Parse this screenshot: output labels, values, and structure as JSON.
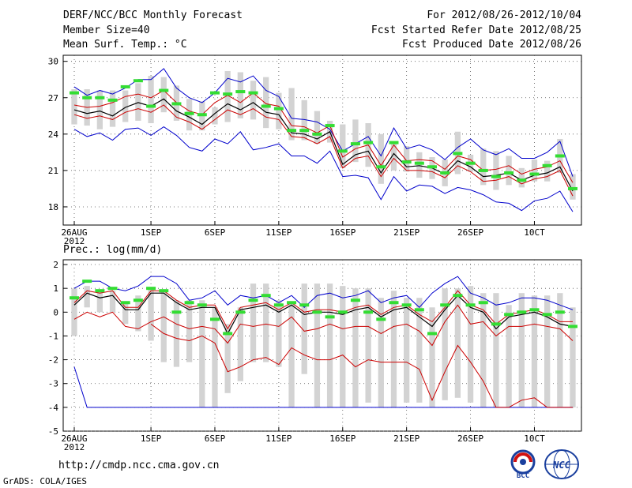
{
  "header": {
    "model": "DERF/NCC/BCC Monthly Forecast",
    "member_size": "Member Size=40",
    "variable": "Mean Surf. Temp.: °C",
    "period": "For 2012/08/26-2012/10/04",
    "started": "Fcst Started Refer Date 2012/08/25",
    "produced": "Fcst Produced Date 2012/08/26"
  },
  "precip_label": "Prec.: log(mm/d)",
  "footer": {
    "url": "http://cmdp.ncc.cma.gov.cn",
    "credit": "GrADS: COLA/IGES",
    "logo_left_text": "BCC",
    "logo_right_text": "NCC"
  },
  "colors": {
    "box": "#d3d3d3",
    "ensemble_mean": "#000000",
    "percentile": "#cc0000",
    "extreme": "#0000cc",
    "marker": "#33dd33",
    "grid": "#555555"
  },
  "chart_data": [
    {
      "type": "line",
      "title": "Mean Surf. Temp.: °C",
      "x_tick_labels": [
        "26AUG\n2012",
        "1SEP",
        "6SEP",
        "11SEP",
        "16SEP",
        "21SEP",
        "26SEP",
        "1OCT"
      ],
      "x_tick_days": [
        0,
        6,
        11,
        16,
        21,
        26,
        31,
        36
      ],
      "x_tick_display": [
        "26AUG",
        "1SEP",
        "6SEP",
        "11SEP",
        "16SEP",
        "21SEP",
        "26SEP",
        "10CT"
      ],
      "x_tick_year": "2012",
      "ylim": [
        16.5,
        30.5
      ],
      "yticks": [
        18,
        21,
        24,
        27,
        30
      ],
      "grid": true,
      "days": 40,
      "series": [
        {
          "name": "max",
          "values": [
            27.9,
            27.2,
            27.6,
            27.3,
            27.8,
            28.5,
            28.5,
            29.4,
            27.8,
            27.0,
            26.6,
            27.4,
            28.6,
            28.3,
            28.8,
            27.6,
            27.1,
            25.3,
            25.2,
            25.0,
            24.4,
            22.6,
            23.2,
            23.8,
            22.2,
            24.5,
            22.8,
            23.1,
            22.7,
            21.9,
            22.9,
            23.6,
            22.7,
            22.3,
            22.8,
            22.0,
            22.0,
            22.5,
            23.4,
            20.5
          ]
        },
        {
          "name": "upper",
          "values": [
            26.4,
            26.2,
            26.3,
            26.6,
            27.1,
            27.3,
            27.0,
            27.6,
            26.6,
            25.9,
            25.6,
            26.6,
            27.2,
            26.6,
            27.4,
            26.5,
            26.3,
            24.7,
            24.6,
            24.1,
            24.7,
            22.1,
            22.8,
            23.1,
            21.4,
            23.1,
            21.8,
            21.9,
            21.8,
            21.1,
            22.2,
            21.9,
            21.0,
            21.1,
            21.4,
            20.7,
            21.1,
            21.3,
            21.8,
            20.0
          ]
        },
        {
          "name": "mean",
          "values": [
            26.0,
            25.7,
            25.9,
            25.5,
            26.2,
            26.6,
            26.3,
            26.9,
            25.9,
            25.4,
            24.8,
            25.7,
            26.5,
            26.0,
            26.6,
            25.8,
            25.6,
            24.1,
            24.0,
            23.6,
            24.2,
            21.5,
            22.3,
            22.6,
            20.8,
            22.4,
            21.3,
            21.4,
            21.2,
            20.7,
            21.8,
            21.3,
            20.5,
            20.6,
            20.8,
            20.2,
            20.6,
            20.8,
            21.3,
            19.3
          ]
        },
        {
          "name": "lower",
          "values": [
            25.6,
            25.3,
            25.5,
            25.2,
            25.8,
            26.1,
            25.8,
            26.4,
            25.4,
            25.0,
            24.4,
            25.2,
            26.0,
            25.6,
            26.1,
            25.4,
            25.2,
            23.8,
            23.7,
            23.2,
            23.8,
            21.2,
            22.0,
            22.2,
            20.5,
            22.0,
            21.0,
            21.0,
            20.9,
            20.4,
            21.4,
            20.9,
            20.1,
            20.2,
            20.5,
            19.9,
            20.3,
            20.5,
            21.0,
            18.9
          ]
        },
        {
          "name": "min",
          "values": [
            24.4,
            23.8,
            24.1,
            23.5,
            24.4,
            24.5,
            23.9,
            24.6,
            23.9,
            22.9,
            22.6,
            23.6,
            23.2,
            24.2,
            22.7,
            22.9,
            23.2,
            22.2,
            22.2,
            21.6,
            22.6,
            20.5,
            20.6,
            20.4,
            18.6,
            20.5,
            19.3,
            19.8,
            19.7,
            19.1,
            19.6,
            19.4,
            19.0,
            18.4,
            18.3,
            17.7,
            18.5,
            18.7,
            19.3,
            17.6
          ]
        },
        {
          "name": "box_top",
          "values": [
            27.7,
            27.7,
            27.6,
            27.6,
            27.6,
            28.2,
            28.8,
            28.7,
            28.0,
            26.9,
            26.7,
            26.2,
            29.2,
            29.1,
            28.4,
            28.7,
            27.4,
            27.8,
            26.8,
            25.9,
            25.1,
            24.8,
            25.2,
            24.9,
            24.0,
            23.2,
            23.0,
            22.5,
            22.1,
            21.9,
            24.2,
            22.3,
            22.8,
            22.6,
            22.2,
            21.2,
            21.9,
            21.8,
            23.6,
            20.7
          ]
        },
        {
          "name": "box_bottom",
          "values": [
            24.8,
            24.7,
            24.4,
            24.6,
            25.0,
            25.1,
            24.9,
            25.8,
            25.1,
            24.3,
            24.3,
            24.8,
            25.0,
            25.3,
            25.2,
            24.5,
            24.4,
            23.5,
            23.5,
            23.2,
            23.3,
            21.2,
            21.7,
            21.3,
            19.9,
            21.0,
            20.9,
            20.4,
            20.3,
            19.7,
            20.7,
            20.9,
            19.8,
            19.4,
            19.8,
            19.6,
            20.1,
            20.1,
            20.8,
            18.6
          ]
        },
        {
          "name": "marker",
          "values": [
            27.4,
            27.0,
            27.0,
            26.8,
            27.9,
            28.4,
            26.3,
            27.6,
            26.5,
            25.7,
            25.6,
            27.4,
            27.3,
            27.5,
            27.4,
            26.3,
            26.1,
            24.3,
            24.3,
            24.0,
            24.7,
            22.6,
            23.2,
            23.3,
            21.3,
            23.3,
            21.7,
            21.6,
            21.3,
            20.8,
            22.4,
            21.6,
            21.0,
            20.5,
            20.8,
            20.2,
            20.7,
            21.4,
            22.2,
            19.5
          ]
        }
      ]
    },
    {
      "type": "line",
      "title": "Prec.: log(mm/d)",
      "x_tick_labels": [
        "26AUG\n2012",
        "1SEP",
        "6SEP",
        "11SEP",
        "16SEP",
        "21SEP",
        "26SEP",
        "1OCT"
      ],
      "x_tick_days": [
        0,
        6,
        11,
        16,
        21,
        26,
        31,
        36
      ],
      "x_tick_display": [
        "26AUG",
        "1SEP",
        "6SEP",
        "11SEP",
        "16SEP",
        "21SEP",
        "26SEP",
        "10CT"
      ],
      "x_tick_year": "2012",
      "ylim": [
        -5,
        2.2
      ],
      "yticks": [
        -5,
        -4,
        -3,
        -2,
        -1,
        0,
        1,
        2
      ],
      "grid": true,
      "days": 40,
      "series": [
        {
          "name": "max",
          "values": [
            1.0,
            1.3,
            1.3,
            1.0,
            0.9,
            1.1,
            1.5,
            1.5,
            1.2,
            0.5,
            0.6,
            0.9,
            0.3,
            0.7,
            0.6,
            0.7,
            0.4,
            0.7,
            0.2,
            0.7,
            0.8,
            0.6,
            0.7,
            0.9,
            0.4,
            0.6,
            0.7,
            0.2,
            0.8,
            1.2,
            1.5,
            0.8,
            0.6,
            0.3,
            0.4,
            0.6,
            0.6,
            0.5,
            0.3,
            0.1
          ]
        },
        {
          "name": "upper",
          "values": [
            0.4,
            0.9,
            0.8,
            0.9,
            0.2,
            0.2,
            0.9,
            0.9,
            0.5,
            0.2,
            0.3,
            0.3,
            -0.7,
            0.2,
            0.3,
            0.4,
            0.1,
            0.4,
            0.0,
            0.1,
            0.1,
            0.0,
            0.2,
            0.3,
            -0.1,
            0.2,
            0.3,
            -0.1,
            -0.4,
            0.2,
            0.9,
            0.3,
            0.1,
            -0.5,
            -0.1,
            0.0,
            0.1,
            -0.1,
            -0.4,
            -0.4
          ]
        },
        {
          "name": "mean",
          "values": [
            0.3,
            0.8,
            0.6,
            0.7,
            0.1,
            0.1,
            0.8,
            0.8,
            0.4,
            0.1,
            0.2,
            0.2,
            -0.9,
            0.1,
            0.2,
            0.3,
            0.0,
            0.3,
            -0.1,
            0.0,
            0.0,
            -0.1,
            0.1,
            0.2,
            -0.2,
            0.1,
            0.2,
            -0.2,
            -0.6,
            0.1,
            0.7,
            0.2,
            0.0,
            -0.7,
            -0.2,
            -0.1,
            0.0,
            -0.2,
            -0.5,
            -0.6
          ]
        },
        {
          "name": "p25",
          "values": [
            -0.3,
            0.0,
            -0.2,
            0.0,
            -0.6,
            -0.7,
            -0.4,
            -0.2,
            -0.5,
            -0.7,
            -0.6,
            -0.7,
            -1.3,
            -0.5,
            -0.6,
            -0.5,
            -0.6,
            -0.2,
            -0.8,
            -0.7,
            -0.5,
            -0.7,
            -0.6,
            -0.6,
            -0.9,
            -0.6,
            -0.5,
            -0.8,
            -1.4,
            -0.4,
            0.3,
            -0.5,
            -0.4,
            -1.0,
            -0.6,
            -0.6,
            -0.5,
            -0.6,
            -0.7,
            -1.2
          ]
        },
        {
          "name": "p10",
          "values": [
            null,
            null,
            null,
            null,
            null,
            null,
            -0.5,
            -0.9,
            -1.1,
            -1.2,
            -1.0,
            -1.3,
            -2.5,
            -2.3,
            -2.0,
            -1.9,
            -2.2,
            -1.5,
            -1.8,
            -2.0,
            -2.0,
            -1.8,
            -2.3,
            -2.0,
            -2.1,
            -2.1,
            -2.1,
            -2.4,
            -3.7,
            -2.5,
            -1.4,
            -2.1,
            -2.9,
            -4.0,
            -4.0,
            -3.7,
            -3.6,
            -4.0,
            -4.0,
            -4.0
          ]
        },
        {
          "name": "min",
          "values": [
            -2.3,
            -4.0,
            -4.0,
            -4.0,
            -4.0,
            -4.0,
            -4.0,
            -4.0,
            -4.0,
            -4.0,
            -4.0,
            -4.0,
            -4.0,
            -4.0,
            -4.0,
            -4.0,
            -4.0,
            -4.0,
            -4.0,
            -4.0,
            -4.0,
            -4.0,
            -4.0,
            -4.0,
            -4.0,
            -4.0,
            -4.0,
            -4.0,
            -4.0,
            -4.0,
            -4.0,
            -4.0,
            -4.0,
            -4.0,
            -4.0,
            -4.0,
            -4.0,
            -4.0,
            -4.0,
            -4.0
          ]
        },
        {
          "name": "box_top",
          "values": [
            1.0,
            1.1,
            0.9,
            0.9,
            0.4,
            0.7,
            1.0,
            0.9,
            0.5,
            0.5,
            0.5,
            0.2,
            -0.5,
            0.2,
            1.2,
            1.2,
            0.5,
            0.4,
            1.2,
            1.2,
            1.2,
            1.1,
            1.0,
            1.0,
            0.6,
            0.9,
            0.6,
            0.6,
            0.2,
            1.0,
            1.0,
            1.1,
            0.8,
            0.8,
            0.3,
            0.8,
            0.7,
            0.7,
            0.8,
            0.2
          ]
        },
        {
          "name": "box_bottom",
          "values": [
            -1.0,
            0.2,
            0.0,
            0.0,
            -0.5,
            -0.8,
            -1.2,
            -2.1,
            -2.3,
            -2.1,
            -4.0,
            -4.0,
            -3.4,
            -2.9,
            -2.1,
            -2.1,
            -2.3,
            -4.0,
            -2.6,
            -4.0,
            -4.0,
            -4.0,
            -4.0,
            -3.8,
            -4.0,
            -4.0,
            -3.8,
            -3.8,
            -4.0,
            -3.7,
            -3.6,
            -3.8,
            -4.0,
            -4.0,
            -4.0,
            -4.0,
            -4.0,
            -4.0,
            -4.0,
            -4.0
          ]
        },
        {
          "name": "marker",
          "values": [
            0.6,
            1.3,
            0.9,
            1.0,
            0.4,
            0.5,
            1.0,
            0.9,
            0.0,
            0.4,
            0.3,
            -0.3,
            -0.9,
            0.0,
            0.5,
            0.7,
            0.3,
            0.4,
            0.3,
            0.0,
            -0.2,
            0.0,
            0.5,
            0.0,
            -0.3,
            0.4,
            0.3,
            0.1,
            -0.9,
            0.3,
            0.7,
            0.3,
            0.4,
            -0.5,
            -0.1,
            0.0,
            0.1,
            -0.1,
            0.0,
            -0.6
          ]
        }
      ]
    }
  ]
}
